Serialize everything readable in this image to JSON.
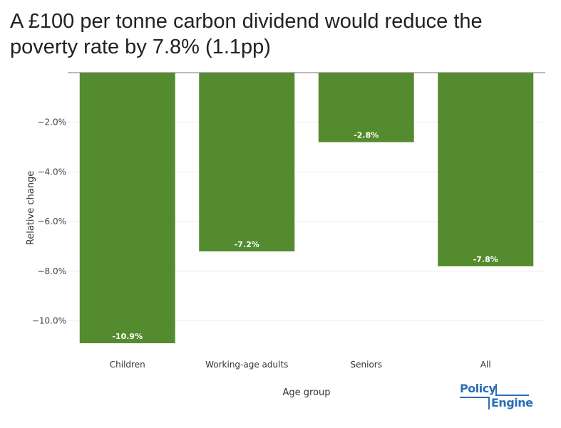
{
  "chart_data": {
    "type": "bar",
    "title": "A £100 per tonne carbon dividend would reduce the poverty rate by 7.8% (1.1pp)",
    "xlabel": "Age group",
    "ylabel": "Relative change",
    "categories": [
      "Children",
      "Working-age adults",
      "Seniors",
      "All"
    ],
    "values": [
      -10.9,
      -7.2,
      -2.8,
      -7.8
    ],
    "data_labels": [
      "-10.9%",
      "-7.2%",
      "-2.8%",
      "-7.8%"
    ],
    "ylim": [
      -10.9,
      0
    ],
    "yticks": [
      -2,
      -4,
      -6,
      -8,
      -10
    ],
    "ytick_labels": [
      "−2.0%",
      "−4.0%",
      "−6.0%",
      "−8.0%",
      "−10.0%"
    ],
    "bar_color": "#558b2f",
    "grid": true
  },
  "logo": {
    "line1": "Policy",
    "line2": "Engine",
    "color": "#2c6fb4"
  }
}
